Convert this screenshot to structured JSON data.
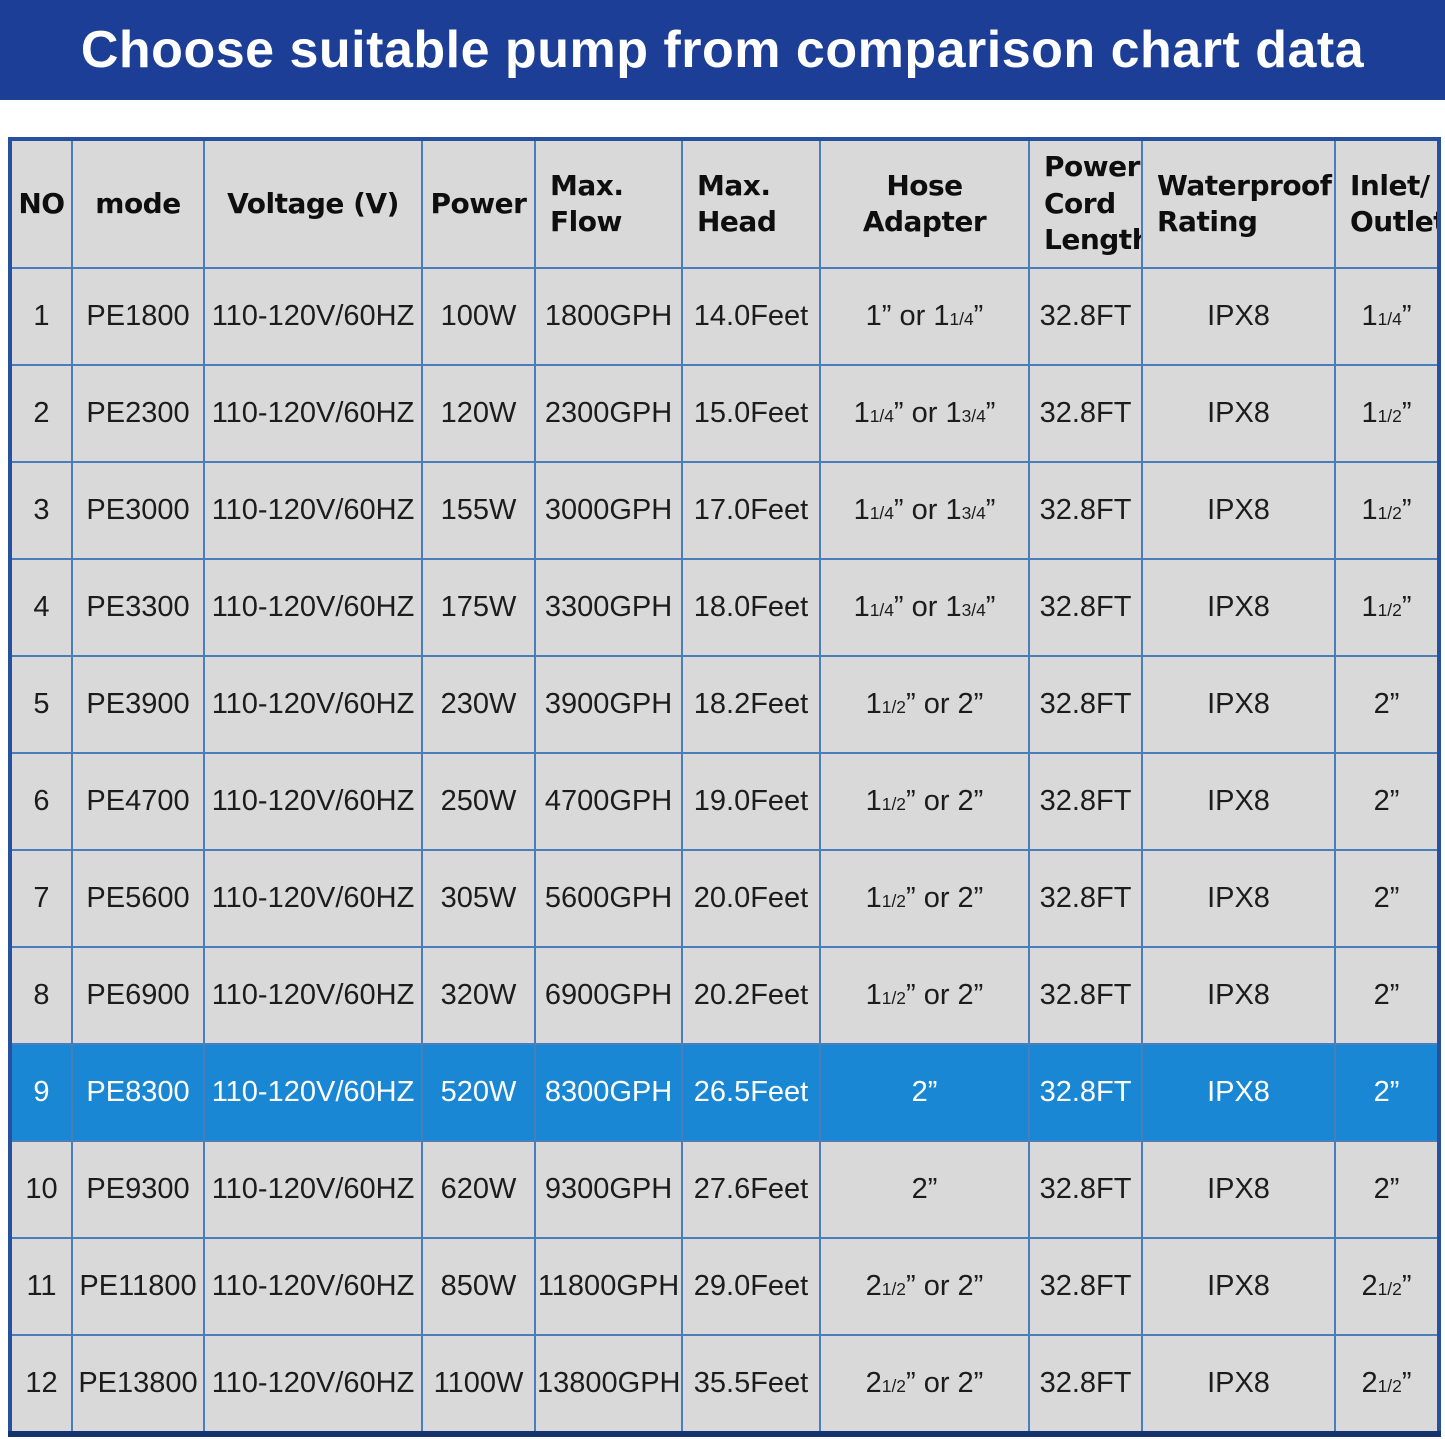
{
  "banner": {
    "title": "Choose suitable pump from comparison chart data"
  },
  "colors": {
    "banner_bg": "#1c3e96",
    "banner_text": "#ffffff",
    "cell_bg": "#d9d9d9",
    "grid_line": "#4a7ebb",
    "outer_border": "#27519f",
    "outer_border_bottom": "#16336f",
    "highlight_bg": "#1a87d4",
    "highlight_text": "#ffffff",
    "data_text": "#1c1c1c"
  },
  "chart_data": {
    "type": "table",
    "title": "Choose suitable pump from comparison chart data",
    "columns": [
      {
        "key": "no",
        "label": "NO",
        "align": "center"
      },
      {
        "key": "mode",
        "label": "mode",
        "align": "center"
      },
      {
        "key": "voltage",
        "label": "Voltage (V)",
        "align": "center"
      },
      {
        "key": "power",
        "label": "Power",
        "align": "center"
      },
      {
        "key": "max_flow",
        "label": "Max.\nFlow",
        "align": "left"
      },
      {
        "key": "max_head",
        "label": "Max.\nHead",
        "align": "left"
      },
      {
        "key": "hose_adapter",
        "label": "Hose Adapter",
        "align": "center"
      },
      {
        "key": "power_cord_length",
        "label": "Power\nCord\nLength",
        "align": "left"
      },
      {
        "key": "waterproof_rating",
        "label": "Waterproof\nRating",
        "align": "left"
      },
      {
        "key": "inlet_outlet",
        "label": "Inlet/\nOutlet",
        "align": "left"
      }
    ],
    "highlighted_row_index": 8,
    "rows": [
      [
        "1",
        "PE1800",
        "110-120V/60HZ",
        "100W",
        "1800GPH",
        "14.0Feet",
        "1” or 1{1/4}”",
        "32.8FT",
        "IPX8",
        "1{1/4}”"
      ],
      [
        "2",
        "PE2300",
        "110-120V/60HZ",
        "120W",
        "2300GPH",
        "15.0Feet",
        "1{1/4}” or 1{3/4}”",
        "32.8FT",
        "IPX8",
        "1{1/2}”"
      ],
      [
        "3",
        "PE3000",
        "110-120V/60HZ",
        "155W",
        "3000GPH",
        "17.0Feet",
        "1{1/4}” or 1{3/4}”",
        "32.8FT",
        "IPX8",
        "1{1/2}”"
      ],
      [
        "4",
        "PE3300",
        "110-120V/60HZ",
        "175W",
        "3300GPH",
        "18.0Feet",
        "1{1/4}” or 1{3/4}”",
        "32.8FT",
        "IPX8",
        "1{1/2}”"
      ],
      [
        "5",
        "PE3900",
        "110-120V/60HZ",
        "230W",
        "3900GPH",
        "18.2Feet",
        "1{1/2}” or 2”",
        "32.8FT",
        "IPX8",
        "2”"
      ],
      [
        "6",
        "PE4700",
        "110-120V/60HZ",
        "250W",
        "4700GPH",
        "19.0Feet",
        "1{1/2}” or 2”",
        "32.8FT",
        "IPX8",
        "2”"
      ],
      [
        "7",
        "PE5600",
        "110-120V/60HZ",
        "305W",
        "5600GPH",
        "20.0Feet",
        "1{1/2}” or 2”",
        "32.8FT",
        "IPX8",
        "2”"
      ],
      [
        "8",
        "PE6900",
        "110-120V/60HZ",
        "320W",
        "6900GPH",
        "20.2Feet",
        "1{1/2}” or 2”",
        "32.8FT",
        "IPX8",
        "2”"
      ],
      [
        "9",
        "PE8300",
        "110-120V/60HZ",
        "520W",
        "8300GPH",
        "26.5Feet",
        "2”",
        "32.8FT",
        "IPX8",
        "2”"
      ],
      [
        "10",
        "PE9300",
        "110-120V/60HZ",
        "620W",
        "9300GPH",
        "27.6Feet",
        "2”",
        "32.8FT",
        "IPX8",
        "2”"
      ],
      [
        "11",
        "PE11800",
        "110-120V/60HZ",
        "850W",
        "11800GPH",
        "29.0Feet",
        "2{1/2}” or 2”",
        "32.8FT",
        "IPX8",
        "2{1/2}”"
      ],
      [
        "12",
        "PE13800",
        "110-120V/60HZ",
        "1100W",
        "13800GPH",
        "35.5Feet",
        "2{1/2}” or 2”",
        "32.8FT",
        "IPX8",
        "2{1/2}”"
      ]
    ]
  }
}
